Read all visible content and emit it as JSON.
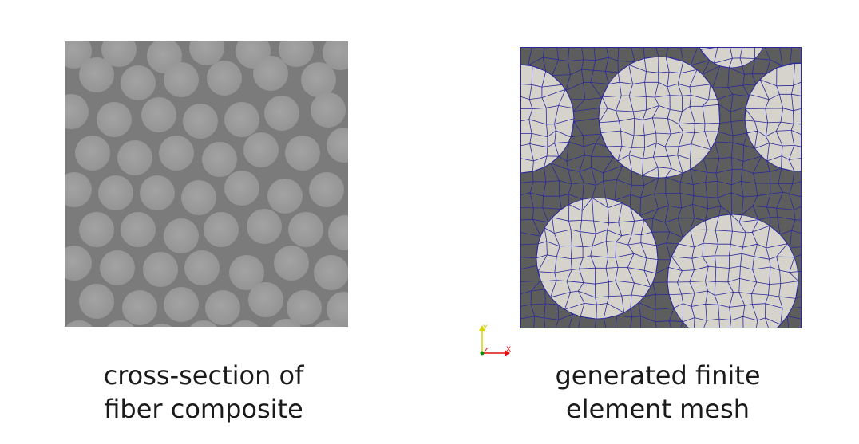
{
  "left_panel": {
    "caption_line1": "cross-section of",
    "caption_line2": "fiber composite"
  },
  "right_panel": {
    "caption_line1": "generated finite",
    "caption_line2": "element mesh"
  },
  "orientation_axes": {
    "x_label": "X",
    "y_label": "Y",
    "z_label": "Z"
  },
  "colors": {
    "matrix_photo": "#7c7c7c",
    "fiber_photo": "#9b9b9b",
    "matrix_mesh": "#5d5d5d",
    "fiber_mesh": "#d6d2cc",
    "mesh_edges": "#2a2a9a",
    "x_axis": "#d11",
    "y_axis": "#dd0",
    "z_axis": "#0a0"
  }
}
